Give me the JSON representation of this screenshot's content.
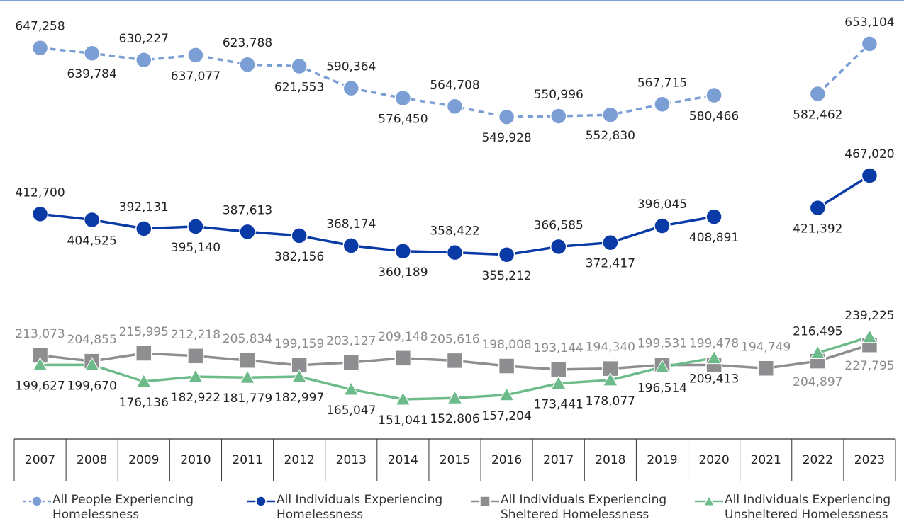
{
  "chart_data": {
    "type": "line",
    "categories": [
      "2007",
      "2008",
      "2009",
      "2010",
      "2011",
      "2012",
      "2013",
      "2014",
      "2015",
      "2016",
      "2017",
      "2018",
      "2019",
      "2020",
      "2021",
      "2022",
      "2023"
    ],
    "ylim": [
      95000,
      715000
    ],
    "series": [
      {
        "name": "All People Experiencing Homelessness",
        "color": "#7b9fd4",
        "line_style": "dashed",
        "marker": "circle",
        "label_color": "#222222",
        "values": [
          647258,
          639784,
          630227,
          637077,
          623788,
          621553,
          590364,
          576450,
          564708,
          549928,
          550996,
          552830,
          567715,
          580466,
          null,
          582462,
          653104
        ],
        "value_labels": [
          "647,258",
          "639,784",
          "630,227",
          "637,077",
          "623,788",
          "621,553",
          "590,364",
          "576,450",
          "564,708",
          "549,928",
          "550,996",
          "552,830",
          "567,715",
          "580,466",
          null,
          "582,462",
          "653,104"
        ]
      },
      {
        "name": "All Individuals Experiencing Homelessness",
        "color": "#0a3aa6",
        "line_style": "solid",
        "marker": "circle",
        "label_color": "#222222",
        "values": [
          412700,
          404525,
          392131,
          395140,
          387613,
          382156,
          368174,
          360189,
          358422,
          355212,
          366585,
          372417,
          396045,
          408891,
          null,
          421392,
          467020
        ],
        "value_labels": [
          "412,700",
          "404,525",
          "392,131",
          "395,140",
          "387,613",
          "382,156",
          "368,174",
          "360,189",
          "358,422",
          "355,212",
          "366,585",
          "372,417",
          "396,045",
          "408,891",
          null,
          "421,392",
          "467,020"
        ]
      },
      {
        "name": "All Individuals Experiencing Sheltered Homelessness",
        "color": "#8e8e91",
        "line_style": "solid",
        "marker": "square",
        "label_color": "#8a8a8a",
        "values": [
          213073,
          204855,
          215995,
          212218,
          205834,
          199159,
          203127,
          209148,
          205616,
          198008,
          193144,
          194340,
          199531,
          199478,
          194749,
          204897,
          227795
        ],
        "value_labels": [
          "213,073",
          "204,855",
          "215,995",
          "212,218",
          "205,834",
          "199,159",
          "203,127",
          "209,148",
          "205,616",
          "198,008",
          "193,144",
          "194,340",
          "199,531",
          "199,478",
          "194,749",
          "204,897",
          "227,795"
        ]
      },
      {
        "name": "All Individuals Experiencing Unsheltered Homelessness",
        "color": "#6dbb8a",
        "line_style": "solid",
        "marker": "triangle",
        "label_color": "#222222",
        "values": [
          199627,
          199670,
          176136,
          182922,
          181779,
          182997,
          165047,
          151041,
          152806,
          157204,
          173441,
          178077,
          196514,
          209413,
          null,
          216495,
          239225
        ],
        "value_labels": [
          "199,627",
          "199,670",
          "176,136",
          "182,922",
          "181,779",
          "182,997",
          "165,047",
          "151,041",
          "152,806",
          "157,204",
          "173,441",
          "178,077",
          "196,514",
          "209,413",
          null,
          "216,495",
          "239,225"
        ]
      }
    ]
  }
}
